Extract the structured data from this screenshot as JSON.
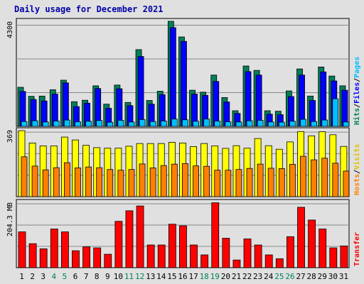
{
  "title": "Daily usage for December 2021",
  "chart_data": [
    {
      "type": "bar",
      "title": "Daily usage for December 2021",
      "categories": [
        "1",
        "2",
        "3",
        "4",
        "5",
        "6",
        "7",
        "8",
        "9",
        "10",
        "11",
        "12",
        "13",
        "14",
        "15",
        "16",
        "17",
        "18",
        "19",
        "20",
        "21",
        "22",
        "23",
        "24",
        "25",
        "26",
        "27",
        "28",
        "29",
        "30",
        "31"
      ],
      "weekend_categories": [
        "4",
        "5",
        "11",
        "12",
        "18",
        "19",
        "25",
        "26"
      ],
      "ylabel_parts": [
        "Hits",
        "Files",
        "Pages"
      ],
      "ymax_label": "4300",
      "ylim": [
        0,
        4300
      ],
      "series": [
        {
          "name": "Hits",
          "color": "#00805c",
          "values": [
            1600,
            1230,
            1240,
            1500,
            1890,
            1010,
            1070,
            1660,
            910,
            1690,
            980,
            3140,
            1060,
            1440,
            4300,
            3660,
            1480,
            1400,
            2100,
            1180,
            640,
            2470,
            2290,
            640,
            620,
            1450,
            2350,
            1240,
            2430,
            2060,
            1660
          ]
        },
        {
          "name": "Files",
          "color": "#0000ff",
          "values": [
            1430,
            1100,
            1040,
            1320,
            1780,
            810,
            950,
            1550,
            740,
            1540,
            850,
            2860,
            910,
            1300,
            4040,
            3480,
            1320,
            1270,
            1840,
            1000,
            530,
            2240,
            2100,
            500,
            480,
            1220,
            2100,
            1060,
            2230,
            1860,
            1480
          ]
        },
        {
          "name": "Pages",
          "color": "#00c0ff",
          "values": [
            200,
            230,
            180,
            220,
            260,
            190,
            210,
            240,
            170,
            250,
            180,
            280,
            200,
            220,
            300,
            270,
            210,
            300,
            220,
            190,
            180,
            230,
            250,
            180,
            170,
            210,
            290,
            200,
            260,
            1130,
            180
          ]
        }
      ]
    },
    {
      "type": "bar",
      "categories": [
        "1",
        "2",
        "3",
        "4",
        "5",
        "6",
        "7",
        "8",
        "9",
        "10",
        "11",
        "12",
        "13",
        "14",
        "15",
        "16",
        "17",
        "18",
        "19",
        "20",
        "21",
        "22",
        "23",
        "24",
        "25",
        "26",
        "27",
        "28",
        "29",
        "30",
        "31"
      ],
      "ylabel_parts": [
        "Hosts",
        "Visits"
      ],
      "ymax_label": "369",
      "ylim": [
        0,
        369
      ],
      "series": [
        {
          "name": "Visits",
          "color": "#ffff00",
          "values": [
            369,
            300,
            284,
            284,
            333,
            317,
            287,
            274,
            271,
            271,
            282,
            297,
            297,
            297,
            304,
            300,
            280,
            297,
            284,
            270,
            285,
            271,
            325,
            285,
            265,
            306,
            364,
            340,
            363,
            346,
            281
          ]
        },
        {
          "name": "Hosts",
          "color": "#ff8000",
          "values": [
            223,
            171,
            150,
            162,
            190,
            161,
            166,
            162,
            152,
            148,
            152,
            183,
            161,
            174,
            182,
            185,
            172,
            170,
            148,
            148,
            152,
            158,
            182,
            159,
            157,
            181,
            226,
            206,
            215,
            187,
            143
          ]
        }
      ]
    },
    {
      "type": "bar",
      "categories": [
        "1",
        "2",
        "3",
        "4",
        "5",
        "6",
        "7",
        "8",
        "9",
        "10",
        "11",
        "12",
        "13",
        "14",
        "15",
        "16",
        "17",
        "18",
        "19",
        "20",
        "21",
        "22",
        "23",
        "24",
        "25",
        "26",
        "27",
        "28",
        "29",
        "30",
        "31"
      ],
      "ylabel_parts": [
        "Transfer"
      ],
      "ymax_label": "204.3 MB",
      "ylim": [
        0,
        204.3
      ],
      "series": [
        {
          "name": "Transfer",
          "color": "#ff0000",
          "values": [
            112,
            75,
            59,
            121,
            112,
            53,
            65,
            62,
            42,
            145,
            178,
            193,
            71,
            71,
            136,
            131,
            71,
            40,
            203,
            92,
            24,
            90,
            71,
            40,
            28,
            97,
            189,
            149,
            121,
            62,
            68
          ]
        }
      ]
    }
  ]
}
